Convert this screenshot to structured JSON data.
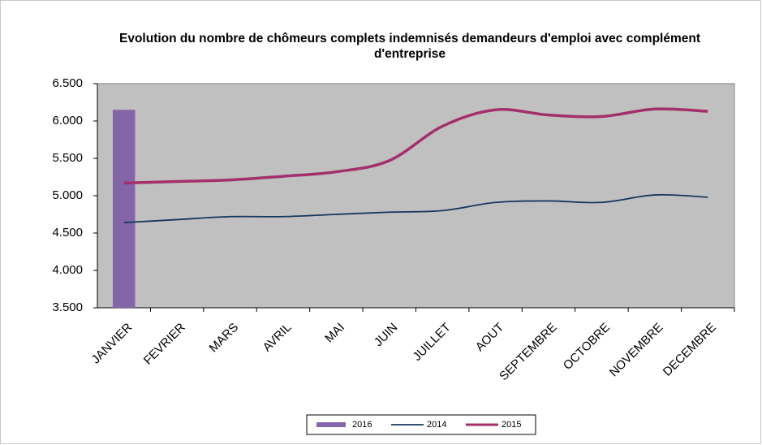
{
  "chart_data": {
    "type": "combo",
    "title": "Evolution du nombre de chômeurs complets indemnisés demandeurs d'emploi avec complément d'entreprise",
    "categories": [
      "JANVIER",
      "FEVRIER",
      "MARS",
      "AVRIL",
      "MAI",
      "JUIN",
      "JUILLET",
      "AOUT",
      "SEPTEMBRE",
      "OCTOBRE",
      "NOVEMBRE",
      "DECEMBRE"
    ],
    "series": [
      {
        "name": "2016",
        "type": "bar",
        "color": "#8466a8",
        "values": [
          6150,
          null,
          null,
          null,
          null,
          null,
          null,
          null,
          null,
          null,
          null,
          null
        ]
      },
      {
        "name": "2014",
        "type": "line",
        "color": "#17375e",
        "values": [
          4640,
          4680,
          4720,
          4720,
          4750,
          4780,
          4800,
          4910,
          4930,
          4910,
          5010,
          4980
        ]
      },
      {
        "name": "2015",
        "type": "line",
        "color": "#a3306b",
        "values": [
          5170,
          5190,
          5210,
          5260,
          5320,
          5470,
          5930,
          6150,
          6080,
          6060,
          6160,
          6130
        ]
      }
    ],
    "ylim": [
      3500,
      6500
    ],
    "yticks": [
      {
        "value": 3500,
        "label": "3.500"
      },
      {
        "value": 4000,
        "label": "4.000"
      },
      {
        "value": 4500,
        "label": "4.500"
      },
      {
        "value": 5000,
        "label": "5.000"
      },
      {
        "value": 5500,
        "label": "5.500"
      },
      {
        "value": 6000,
        "label": "6.000"
      },
      {
        "value": 6500,
        "label": "6.500"
      }
    ],
    "plot_background": "#c0c0c0",
    "legend": "bottom"
  }
}
